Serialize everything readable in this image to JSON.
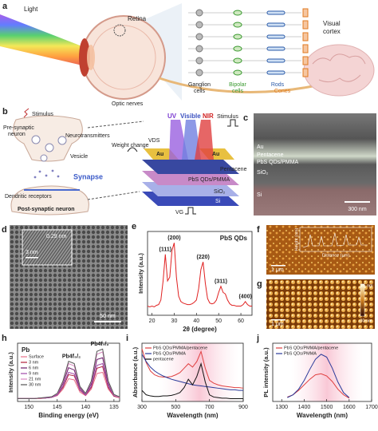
{
  "figure": {
    "a": {
      "label": "a",
      "light": "Light",
      "retina": "Retina",
      "optic_nerves": "Optic nerves",
      "ganglion": [
        "Ganglion",
        "cells"
      ],
      "bipolar": [
        "Bipolar",
        "cells"
      ],
      "rods_cones": [
        "Rods",
        "Cones"
      ],
      "visual_cortex": [
        "Visual",
        "cortex"
      ]
    },
    "b": {
      "label": "b",
      "stimulus_neuron": "Stimulus",
      "pre_synaptic": [
        "Pre-synaptic",
        "neuron"
      ],
      "neurotransmitters": "Neurotransmitters",
      "vesicle": "Vesicle",
      "synapse": "Synapse",
      "dendritic": "Dendritic receptors",
      "post_synaptic": "Post-synaptic neuron",
      "uv": "UV",
      "visible": "Visible",
      "nir": "NIR",
      "stimulus_device": "Stimulus",
      "vds": "VDS",
      "weight_change": "Weight change",
      "au_left": "Au",
      "au_right": "Au",
      "pentacene": "Pentacene",
      "pbs": "PbS QDs/PMMA",
      "sio2": "SiO₂",
      "si": "Si",
      "vg": "VG"
    },
    "c": {
      "label": "c",
      "au": "Au",
      "pentacene": "Pentacene",
      "pbs": "PbS QDs/PMMA",
      "sio2": "SiO₂",
      "si": "Si",
      "scale": "300 nm"
    },
    "d": {
      "label": "d",
      "lattice": "0.29 nm",
      "inset_scale": "3 nm",
      "scale": "50 nm"
    },
    "f": {
      "label": "f",
      "scale": "1 μm",
      "inset_y": "Height (nm)",
      "inset_x": "Distance (μm)"
    },
    "g": {
      "label": "g",
      "scale": "1 μm",
      "bar_max": "25 nm",
      "bar_min": "-30 nm"
    }
  },
  "chart_data": [
    {
      "type": "line",
      "panel": "e",
      "title": "PbS QDs",
      "xlabel": "2θ (degree)",
      "ylabel": "Intensity (a.u.)",
      "x": [
        18,
        19,
        20,
        21,
        22,
        23,
        24,
        25,
        26,
        27,
        28,
        29,
        30,
        31,
        32,
        33,
        34,
        35,
        36,
        37,
        38,
        39,
        40,
        41,
        42,
        43,
        44,
        45,
        46,
        47,
        48,
        49,
        50,
        51,
        52,
        53,
        54,
        55,
        56,
        57,
        58,
        59,
        60,
        61,
        62,
        63,
        64,
        65
      ],
      "values": [
        0.12,
        0.11,
        0.12,
        0.11,
        0.13,
        0.14,
        0.2,
        0.45,
        0.8,
        0.45,
        0.5,
        0.85,
        0.95,
        0.5,
        0.25,
        0.18,
        0.16,
        0.15,
        0.14,
        0.14,
        0.15,
        0.17,
        0.2,
        0.35,
        0.6,
        0.7,
        0.42,
        0.22,
        0.16,
        0.15,
        0.16,
        0.2,
        0.3,
        0.38,
        0.3,
        0.28,
        0.2,
        0.15,
        0.13,
        0.13,
        0.12,
        0.12,
        0.12,
        0.14,
        0.18,
        0.14,
        0.12,
        0.12
      ],
      "color": "#e02020",
      "xlim": [
        18,
        65
      ],
      "xticks": [
        20,
        30,
        40,
        50,
        60
      ],
      "ylim": [
        0,
        1.1
      ],
      "annotations": [
        {
          "text": "(111)",
          "x": 26
        },
        {
          "text": "(200)",
          "x": 30
        },
        {
          "text": "(220)",
          "x": 43
        },
        {
          "text": "(311)",
          "x": 51
        },
        {
          "text": "(400)",
          "x": 62
        }
      ]
    },
    {
      "type": "line",
      "panel": "h",
      "title": "Pb",
      "xlabel": "Binding energy (eV)",
      "ylabel": "Intensity (a.u.)",
      "x": [
        152,
        151,
        150,
        149,
        148,
        147,
        146,
        145,
        144,
        143,
        142,
        141,
        140,
        139,
        138,
        137,
        136,
        135,
        134
      ],
      "series": [
        {
          "name": "Surface",
          "color": "#e8708a",
          "values": [
            0.05,
            0.05,
            0.05,
            0.05,
            0.05,
            0.06,
            0.07,
            0.1,
            0.21,
            0.39,
            0.37,
            0.16,
            0.1,
            0.21,
            0.48,
            0.5,
            0.21,
            0.09,
            0.06
          ]
        },
        {
          "name": "3 nm",
          "color": "#b0203a",
          "values": [
            0.05,
            0.05,
            0.05,
            0.05,
            0.06,
            0.06,
            0.07,
            0.11,
            0.24,
            0.46,
            0.44,
            0.19,
            0.11,
            0.24,
            0.57,
            0.6,
            0.24,
            0.09,
            0.07
          ]
        },
        {
          "name": "6 nm",
          "color": "#6a1b6a",
          "values": [
            0.05,
            0.05,
            0.05,
            0.05,
            0.06,
            0.06,
            0.08,
            0.12,
            0.3,
            0.58,
            0.54,
            0.23,
            0.12,
            0.3,
            0.72,
            0.75,
            0.3,
            0.11,
            0.07
          ]
        },
        {
          "name": "9 nm",
          "color": "#a04aa8",
          "values": [
            0.05,
            0.05,
            0.05,
            0.05,
            0.06,
            0.06,
            0.07,
            0.11,
            0.26,
            0.5,
            0.47,
            0.2,
            0.11,
            0.26,
            0.62,
            0.65,
            0.26,
            0.1,
            0.07
          ]
        },
        {
          "name": "21 nm",
          "color": "#d889c0",
          "values": [
            0.05,
            0.05,
            0.05,
            0.05,
            0.06,
            0.07,
            0.08,
            0.13,
            0.33,
            0.65,
            0.61,
            0.25,
            0.13,
            0.33,
            0.81,
            0.85,
            0.33,
            0.11,
            0.07
          ]
        },
        {
          "name": "30 nm",
          "color": "#555555",
          "values": [
            0.05,
            0.05,
            0.05,
            0.05,
            0.06,
            0.07,
            0.08,
            0.14,
            0.35,
            0.69,
            0.65,
            0.26,
            0.14,
            0.35,
            0.86,
            0.9,
            0.35,
            0.12,
            0.08
          ]
        }
      ],
      "xlim": [
        152,
        134
      ],
      "xticks": [
        150,
        145,
        140,
        135
      ],
      "ylim": [
        0,
        1
      ],
      "legend": "upper left",
      "annotations": [
        {
          "text": "Pb4f₅/₂",
          "x": 142.5
        },
        {
          "text": "Pb4f₇/₂",
          "x": 137.5
        }
      ]
    },
    {
      "type": "line",
      "panel": "i",
      "xlabel": "Wavelength (nm)",
      "ylabel": "Absorbance (a.u.)",
      "x": [
        300,
        325,
        350,
        375,
        400,
        425,
        450,
        475,
        500,
        525,
        550,
        575,
        600,
        625,
        650,
        675,
        700,
        725,
        750,
        775,
        800,
        825,
        850,
        875,
        900
      ],
      "series": [
        {
          "name": "PbS QDs/PMMA/pentacene",
          "color": "#e04040",
          "values": [
            0.95,
            0.7,
            0.55,
            0.48,
            0.45,
            0.44,
            0.44,
            0.45,
            0.48,
            0.52,
            0.6,
            0.68,
            0.62,
            0.72,
            0.9,
            0.6,
            0.38,
            0.33,
            0.3,
            0.28,
            0.27,
            0.26,
            0.25,
            0.25,
            0.24
          ]
        },
        {
          "name": "PbS QDs/PMMA",
          "color": "#2a3a9a",
          "values": [
            0.85,
            0.72,
            0.62,
            0.55,
            0.5,
            0.46,
            0.43,
            0.4,
            0.38,
            0.36,
            0.34,
            0.32,
            0.3,
            0.29,
            0.28,
            0.27,
            0.26,
            0.25,
            0.24,
            0.23,
            0.22,
            0.21,
            0.21,
            0.2,
            0.2
          ]
        },
        {
          "name": "pentacene",
          "color": "#111111",
          "values": [
            0.2,
            0.12,
            0.1,
            0.09,
            0.09,
            0.1,
            0.1,
            0.11,
            0.13,
            0.16,
            0.25,
            0.4,
            0.3,
            0.45,
            0.68,
            0.35,
            0.12,
            0.08,
            0.07,
            0.06,
            0.06,
            0.05,
            0.05,
            0.05,
            0.05
          ]
        }
      ],
      "xlim": [
        300,
        900
      ],
      "xticks": [
        300,
        500,
        700,
        900
      ],
      "ylim": [
        0,
        1.05
      ],
      "legend": "upper left"
    },
    {
      "type": "line",
      "panel": "j",
      "xlabel": "Wavelength (nm)",
      "ylabel": "PL intensity (a.u.)",
      "x": [
        1325,
        1350,
        1375,
        1400,
        1425,
        1450,
        1475,
        1500,
        1525,
        1550,
        1575,
        1600
      ],
      "series": [
        {
          "name": "PbS QDs/PMMA/pentacene",
          "color": "#e04040",
          "values": [
            0.08,
            0.12,
            0.2,
            0.3,
            0.4,
            0.48,
            0.5,
            0.46,
            0.36,
            0.22,
            0.12,
            0.06
          ]
        },
        {
          "name": "PbS QDs/PMMA",
          "color": "#2a3a9a",
          "values": [
            0.07,
            0.12,
            0.22,
            0.38,
            0.58,
            0.76,
            0.85,
            0.8,
            0.6,
            0.35,
            0.16,
            0.07
          ]
        }
      ],
      "xlim": [
        1260,
        1700
      ],
      "xticks": [
        1300,
        1400,
        1500,
        1600,
        1700
      ],
      "ylim": [
        0,
        1.05
      ],
      "legend": "upper left"
    }
  ]
}
